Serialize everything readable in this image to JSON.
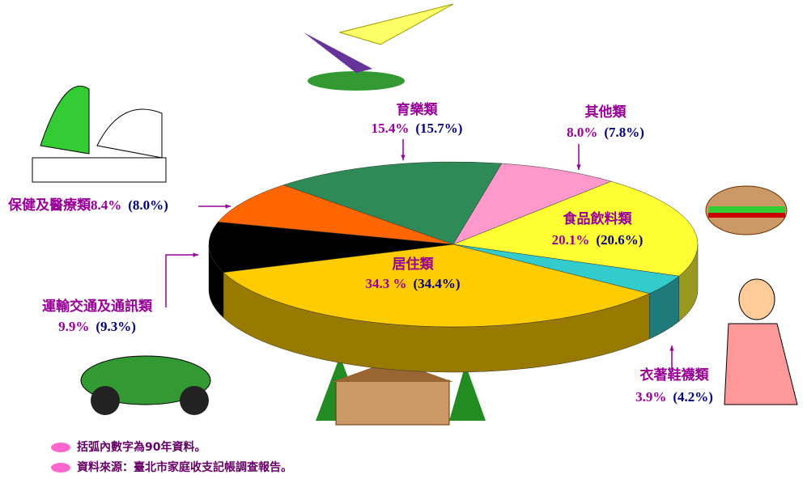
{
  "chart_data": {
    "type": "pie3d",
    "categories": [
      "育樂類",
      "其他類",
      "食品飲料類",
      "衣著鞋襪類",
      "居住類",
      "運輸交通及通訊類",
      "保健及醫療類"
    ],
    "values": [
      15.4,
      8.0,
      20.1,
      3.9,
      34.3,
      9.9,
      8.4
    ],
    "value_labels": [
      "15.4%",
      "8.0%",
      "20.1%",
      "3.9%",
      "34.3 %",
      "9.9%",
      "8.4%"
    ],
    "previous_labels": [
      "(15.7%)",
      "(7.8%)",
      "(20.6%)",
      "(4.2%)",
      "(34.4%)",
      "(9.3%)",
      "(8.0%)"
    ],
    "colors": [
      "#2e8b57",
      "#ff99cc",
      "#ffff33",
      "#33cccc",
      "#ffcc00",
      "#000000",
      "#ff6600"
    ],
    "notes": [
      "括弧內數字為90年資料。",
      "資料來源：臺北市家庭收支記帳調查報告。"
    ]
  }
}
